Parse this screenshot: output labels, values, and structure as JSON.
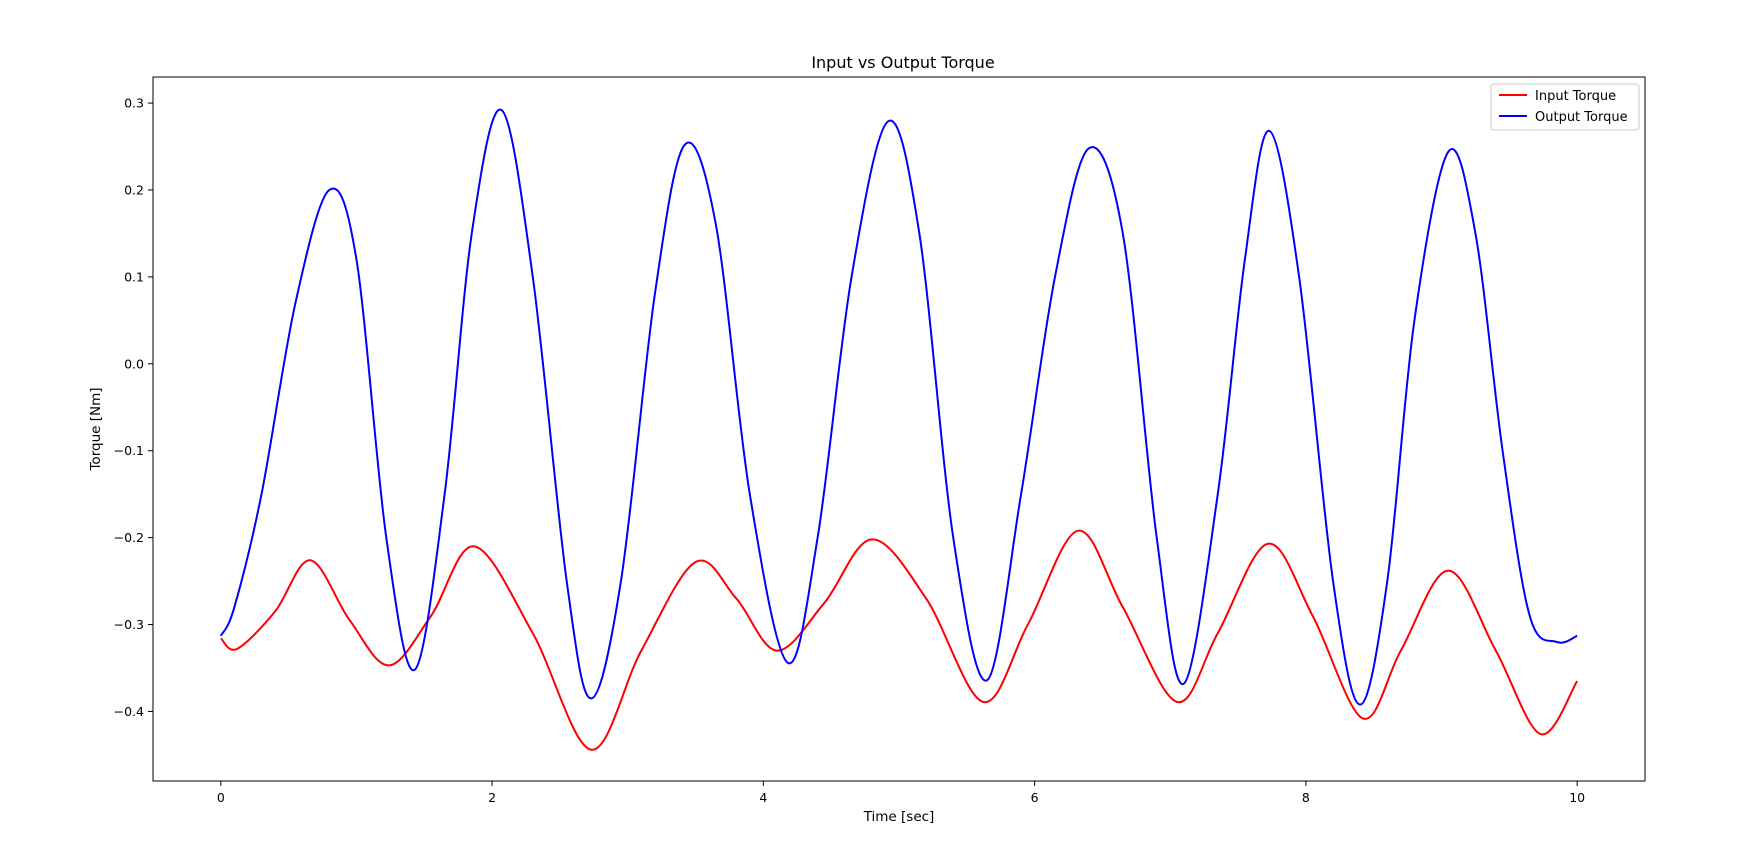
{
  "chart_data": {
    "type": "line",
    "title": "Input vs Output Torque",
    "xlabel": "Time [sec]",
    "ylabel": "Torque [Nm]",
    "xlim": [
      -0.5,
      10.5
    ],
    "ylim": [
      -0.48,
      0.33
    ],
    "xticks": [
      0,
      2,
      4,
      6,
      8,
      10
    ],
    "xtick_labels": [
      "0",
      "2",
      "4",
      "6",
      "8",
      "10"
    ],
    "yticks": [
      -0.4,
      -0.3,
      -0.2,
      -0.1,
      0.0,
      0.1,
      0.2,
      0.3
    ],
    "ytick_labels": [
      "−0.4",
      "−0.3",
      "−0.2",
      "−0.1",
      "0.0",
      "0.1",
      "0.2",
      "0.3"
    ],
    "grid": false,
    "legend_position": "top-right",
    "series": [
      {
        "name": "Input Torque",
        "color": "#ff0000",
        "x": [
          0,
          0.12,
          0.4,
          0.66,
          0.95,
          1.24,
          1.55,
          1.87,
          2.3,
          2.73,
          3.1,
          3.5,
          3.8,
          4.1,
          4.45,
          4.8,
          5.2,
          5.62,
          5.95,
          6.32,
          6.65,
          7.05,
          7.35,
          7.72,
          8.05,
          8.42,
          8.7,
          9.05,
          9.4,
          9.73,
          10.0
        ],
        "y": [
          -0.316,
          -0.328,
          -0.285,
          -0.226,
          -0.295,
          -0.347,
          -0.29,
          -0.21,
          -0.31,
          -0.444,
          -0.33,
          -0.228,
          -0.27,
          -0.33,
          -0.275,
          -0.202,
          -0.27,
          -0.389,
          -0.3,
          -0.192,
          -0.28,
          -0.389,
          -0.31,
          -0.207,
          -0.29,
          -0.408,
          -0.33,
          -0.238,
          -0.33,
          -0.426,
          -0.365
        ]
      },
      {
        "name": "Output Torque",
        "color": "#0000ff",
        "x": [
          0,
          0.1,
          0.3,
          0.55,
          0.8,
          1.0,
          1.22,
          1.43,
          1.65,
          1.85,
          2.07,
          2.3,
          2.55,
          2.73,
          2.95,
          3.2,
          3.42,
          3.65,
          3.9,
          4.18,
          4.4,
          4.65,
          4.92,
          5.15,
          5.4,
          5.65,
          5.9,
          6.15,
          6.4,
          6.65,
          6.9,
          7.1,
          7.35,
          7.55,
          7.73,
          7.95,
          8.2,
          8.4,
          8.6,
          8.8,
          9.05,
          9.25,
          9.45,
          9.65,
          9.85,
          10.0
        ],
        "y": [
          -0.313,
          -0.28,
          -0.15,
          0.07,
          0.2,
          0.12,
          -0.2,
          -0.352,
          -0.15,
          0.15,
          0.292,
          0.1,
          -0.25,
          -0.385,
          -0.25,
          0.08,
          0.252,
          0.16,
          -0.15,
          -0.344,
          -0.2,
          0.1,
          0.279,
          0.15,
          -0.2,
          -0.364,
          -0.15,
          0.1,
          0.248,
          0.15,
          -0.2,
          -0.368,
          -0.15,
          0.12,
          0.268,
          0.1,
          -0.25,
          -0.392,
          -0.25,
          0.05,
          0.244,
          0.15,
          -0.1,
          -0.29,
          -0.32,
          -0.313
        ]
      }
    ]
  }
}
